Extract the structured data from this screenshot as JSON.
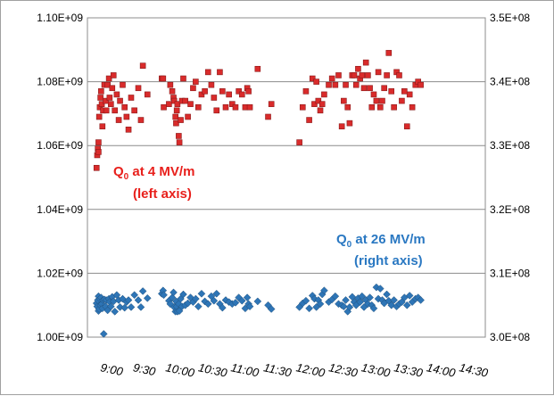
{
  "chart_data": {
    "type": "scatter",
    "x_tick_labels": [
      "9:00",
      "9:30",
      "10:00",
      "10:30",
      "11:00",
      "11:30",
      "12:00",
      "12:30",
      "13:00",
      "13:30",
      "14:00",
      "14:30"
    ],
    "x_tick_hours": [
      9.0,
      9.5,
      10.0,
      10.5,
      11.0,
      11.5,
      12.0,
      12.5,
      13.0,
      13.5,
      14.0,
      14.5
    ],
    "xlim_hours": [
      8.7,
      14.8
    ],
    "left_axis": {
      "ylim": [
        1000000000.0,
        1100000000.0
      ],
      "tick_labels": [
        "1.00E+09",
        "1.02E+09",
        "1.04E+09",
        "1.06E+09",
        "1.08E+09",
        "1.10E+09"
      ],
      "tick_values": [
        1000000000.0,
        1020000000.0,
        1040000000.0,
        1060000000.0,
        1080000000.0,
        1100000000.0
      ]
    },
    "right_axis": {
      "ylim": [
        300000000.0,
        350000000.0
      ],
      "tick_labels": [
        "3.0E+08",
        "3.1E+08",
        "3.2E+08",
        "3.3E+08",
        "3.4E+08",
        "3.5E+08"
      ],
      "tick_values": [
        300000000.0,
        310000000.0,
        320000000.0,
        330000000.0,
        340000000.0,
        350000000.0
      ]
    },
    "grid": "horizontal",
    "annotations": [
      {
        "main": "Q",
        "sub": "0",
        "rest": " at 4 MV/m",
        "line2": "(left axis)",
        "color": "#e8201c"
      },
      {
        "main": "Q",
        "sub": "0",
        "rest": " at 26 MV/m",
        "line2": "(right axis)",
        "color": "#2a78c2"
      }
    ],
    "series": [
      {
        "axis": "left",
        "marker": "square",
        "color": "#d92b2b",
        "points": [
          [
            8.84,
            1053000000.0
          ],
          [
            8.85,
            1057000000.0
          ],
          [
            8.86,
            1059000000.0
          ],
          [
            8.87,
            1061000000.0
          ],
          [
            8.87,
            1058000000.0
          ],
          [
            8.88,
            1069000000.0
          ],
          [
            8.89,
            1072000000.0
          ],
          [
            8.9,
            1075000000.0
          ],
          [
            8.91,
            1077000000.0
          ],
          [
            8.92,
            1073000000.0
          ],
          [
            8.93,
            1066000000.0
          ],
          [
            8.94,
            1071000000.0
          ],
          [
            8.96,
            1079000000.0
          ],
          [
            8.98,
            1074000000.0
          ],
          [
            8.99,
            1071000000.0
          ],
          [
            9.01,
            1079000000.0
          ],
          [
            9.03,
            1081000000.0
          ],
          [
            9.04,
            1075000000.0
          ],
          [
            9.06,
            1073000000.0
          ],
          [
            9.08,
            1078000000.0
          ],
          [
            9.1,
            1082000000.0
          ],
          [
            9.12,
            1071000000.0
          ],
          [
            9.15,
            1076000000.0
          ],
          [
            9.18,
            1068000000.0
          ],
          [
            9.2,
            1074000000.0
          ],
          [
            9.24,
            1079000000.0
          ],
          [
            9.27,
            1072000000.0
          ],
          [
            9.3,
            1069000000.0
          ],
          [
            9.33,
            1065000000.0
          ],
          [
            9.37,
            1075000000.0
          ],
          [
            9.42,
            1071000000.0
          ],
          [
            9.48,
            1078000000.0
          ],
          [
            9.52,
            1068000000.0
          ],
          [
            9.55,
            1085000000.0
          ],
          [
            9.62,
            1076000000.0
          ],
          [
            9.84,
            1081000000.0
          ],
          [
            9.86,
            1081000000.0
          ],
          [
            9.87,
            1072000000.0
          ],
          [
            9.95,
            1073000000.0
          ],
          [
            9.97,
            1079000000.0
          ],
          [
            10.0,
            1077000000.0
          ],
          [
            10.02,
            1075000000.0
          ],
          [
            10.03,
            1074000000.0
          ],
          [
            10.05,
            1069000000.0
          ],
          [
            10.06,
            1067000000.0
          ],
          [
            10.07,
            1071000000.0
          ],
          [
            10.08,
            1073000000.0
          ],
          [
            10.1,
            1063000000.0
          ],
          [
            10.11,
            1061000000.0
          ],
          [
            10.13,
            1068000000.0
          ],
          [
            10.15,
            1074000000.0
          ],
          [
            10.17,
            1081000000.0
          ],
          [
            10.2,
            1074000000.0
          ],
          [
            10.24,
            1069000000.0
          ],
          [
            10.28,
            1073000000.0
          ],
          [
            10.32,
            1078000000.0
          ],
          [
            10.36,
            1080000000.0
          ],
          [
            10.4,
            1072000000.0
          ],
          [
            10.45,
            1076000000.0
          ],
          [
            10.5,
            1077000000.0
          ],
          [
            10.55,
            1083000000.0
          ],
          [
            10.6,
            1079000000.0
          ],
          [
            10.64,
            1075000000.0
          ],
          [
            10.68,
            1071000000.0
          ],
          [
            10.73,
            1083000000.0
          ],
          [
            10.77,
            1077000000.0
          ],
          [
            10.82,
            1072000000.0
          ],
          [
            10.87,
            1076000000.0
          ],
          [
            10.92,
            1073000000.0
          ],
          [
            10.97,
            1072000000.0
          ],
          [
            11.02,
            1077000000.0
          ],
          [
            11.07,
            1076000000.0
          ],
          [
            11.12,
            1072000000.0
          ],
          [
            11.15,
            1078000000.0
          ],
          [
            11.17,
            1077000000.0
          ],
          [
            11.19,
            1072000000.0
          ],
          [
            11.31,
            1084000000.0
          ],
          [
            11.47,
            1069000000.0
          ],
          [
            11.52,
            1073000000.0
          ],
          [
            11.95,
            1061000000.0
          ],
          [
            12.0,
            1072000000.0
          ],
          [
            12.05,
            1077000000.0
          ],
          [
            12.1,
            1068000000.0
          ],
          [
            12.15,
            1081000000.0
          ],
          [
            12.18,
            1073000000.0
          ],
          [
            12.21,
            1080000000.0
          ],
          [
            12.24,
            1074000000.0
          ],
          [
            12.27,
            1071000000.0
          ],
          [
            12.3,
            1073000000.0
          ],
          [
            12.33,
            1076000000.0
          ],
          [
            12.4,
            1079000000.0
          ],
          [
            12.45,
            1081000000.0
          ],
          [
            12.5,
            1079000000.0
          ],
          [
            12.55,
            1082000000.0
          ],
          [
            12.6,
            1066000000.0
          ],
          [
            12.63,
            1074000000.0
          ],
          [
            12.66,
            1079000000.0
          ],
          [
            12.69,
            1072000000.0
          ],
          [
            12.72,
            1067000000.0
          ],
          [
            12.76,
            1082000000.0
          ],
          [
            12.79,
            1082000000.0
          ],
          [
            12.82,
            1079000000.0
          ],
          [
            12.85,
            1084000000.0
          ],
          [
            12.88,
            1081000000.0
          ],
          [
            12.91,
            1082000000.0
          ],
          [
            12.94,
            1078000000.0
          ],
          [
            12.97,
            1086000000.0
          ],
          [
            13.0,
            1082000000.0
          ],
          [
            13.03,
            1078000000.0
          ],
          [
            13.06,
            1072000000.0
          ],
          [
            13.09,
            1076000000.0
          ],
          [
            13.13,
            1074000000.0
          ],
          [
            13.16,
            1083000000.0
          ],
          [
            13.19,
            1072000000.0
          ],
          [
            13.22,
            1074000000.0
          ],
          [
            13.25,
            1078000000.0
          ],
          [
            13.29,
            1082000000.0
          ],
          [
            13.32,
            1089000000.0
          ],
          [
            13.36,
            1077000000.0
          ],
          [
            13.4,
            1072000000.0
          ],
          [
            13.44,
            1083000000.0
          ],
          [
            13.48,
            1082000000.0
          ],
          [
            13.52,
            1074000000.0
          ],
          [
            13.56,
            1077000000.0
          ],
          [
            13.6,
            1066000000.0
          ],
          [
            13.64,
            1076000000.0
          ],
          [
            13.68,
            1072000000.0
          ],
          [
            13.73,
            1079000000.0
          ],
          [
            13.77,
            1080000000.0
          ],
          [
            13.81,
            1079000000.0
          ]
        ]
      },
      {
        "axis": "right",
        "marker": "diamond",
        "color": "#2e75b6",
        "points": [
          [
            8.84,
            305300000.0
          ],
          [
            8.85,
            304800000.0
          ],
          [
            8.86,
            305800000.0
          ],
          [
            8.87,
            304100000.0
          ],
          [
            8.87,
            306400000.0
          ],
          [
            8.88,
            304400000.0
          ],
          [
            8.89,
            306000000.0
          ],
          [
            8.9,
            305000000.0
          ],
          [
            8.91,
            306200000.0
          ],
          [
            8.92,
            305200000.0
          ],
          [
            8.93,
            304500000.0
          ],
          [
            8.94,
            305800000.0
          ],
          [
            8.95,
            300500000.0
          ],
          [
            8.96,
            305900000.0
          ],
          [
            8.98,
            304800000.0
          ],
          [
            8.99,
            305800000.0
          ],
          [
            9.01,
            304200000.0
          ],
          [
            9.03,
            306000000.0
          ],
          [
            9.04,
            305500000.0
          ],
          [
            9.06,
            304800000.0
          ],
          [
            9.08,
            306300000.0
          ],
          [
            9.1,
            305600000.0
          ],
          [
            9.12,
            304000000.0
          ],
          [
            9.15,
            306600000.0
          ],
          [
            9.18,
            305800000.0
          ],
          [
            9.2,
            304700000.0
          ],
          [
            9.24,
            306000000.0
          ],
          [
            9.27,
            304600000.0
          ],
          [
            9.3,
            305500000.0
          ],
          [
            9.33,
            305800000.0
          ],
          [
            9.37,
            304700000.0
          ],
          [
            9.42,
            306600000.0
          ],
          [
            9.48,
            305800000.0
          ],
          [
            9.52,
            304700000.0
          ],
          [
            9.55,
            307200000.0
          ],
          [
            9.62,
            306100000.0
          ],
          [
            9.84,
            306800000.0
          ],
          [
            9.86,
            307300000.0
          ],
          [
            9.87,
            306600000.0
          ],
          [
            9.95,
            305700000.0
          ],
          [
            9.97,
            305200000.0
          ],
          [
            10.0,
            306200000.0
          ],
          [
            10.02,
            307000000.0
          ],
          [
            10.03,
            304700000.0
          ],
          [
            10.05,
            304000000.0
          ],
          [
            10.06,
            305600000.0
          ],
          [
            10.07,
            304800000.0
          ],
          [
            10.08,
            304000000.0
          ],
          [
            10.1,
            305200000.0
          ],
          [
            10.11,
            304100000.0
          ],
          [
            10.13,
            306000000.0
          ],
          [
            10.15,
            304800000.0
          ],
          [
            10.17,
            306700000.0
          ],
          [
            10.2,
            305000000.0
          ],
          [
            10.24,
            305300000.0
          ],
          [
            10.28,
            306200000.0
          ],
          [
            10.32,
            305500000.0
          ],
          [
            10.36,
            306000000.0
          ],
          [
            10.4,
            304800000.0
          ],
          [
            10.45,
            306800000.0
          ],
          [
            10.5,
            305600000.0
          ],
          [
            10.55,
            305200000.0
          ],
          [
            10.6,
            306400000.0
          ],
          [
            10.64,
            305700000.0
          ],
          [
            10.68,
            306800000.0
          ],
          [
            10.73,
            305200000.0
          ],
          [
            10.77,
            304600000.0
          ],
          [
            10.82,
            305800000.0
          ],
          [
            10.87,
            305500000.0
          ],
          [
            10.92,
            305200000.0
          ],
          [
            10.97,
            305400000.0
          ],
          [
            11.02,
            306200000.0
          ],
          [
            11.07,
            305700000.0
          ],
          [
            11.12,
            304500000.0
          ],
          [
            11.15,
            306200000.0
          ],
          [
            11.17,
            305200000.0
          ],
          [
            11.19,
            304800000.0
          ],
          [
            11.31,
            305600000.0
          ],
          [
            11.47,
            305000000.0
          ],
          [
            11.52,
            304400000.0
          ],
          [
            11.95,
            304700000.0
          ],
          [
            12.0,
            305300000.0
          ],
          [
            12.05,
            305700000.0
          ],
          [
            12.1,
            304500000.0
          ],
          [
            12.15,
            306500000.0
          ],
          [
            12.18,
            306000000.0
          ],
          [
            12.21,
            304700000.0
          ],
          [
            12.24,
            305800000.0
          ],
          [
            12.27,
            305200000.0
          ],
          [
            12.3,
            306700000.0
          ],
          [
            12.33,
            307300000.0
          ],
          [
            12.4,
            305500000.0
          ],
          [
            12.45,
            305900000.0
          ],
          [
            12.5,
            306400000.0
          ],
          [
            12.55,
            305200000.0
          ],
          [
            12.6,
            305000000.0
          ],
          [
            12.63,
            304800000.0
          ],
          [
            12.66,
            305800000.0
          ],
          [
            12.69,
            304000000.0
          ],
          [
            12.72,
            304700000.0
          ],
          [
            12.76,
            306300000.0
          ],
          [
            12.79,
            305500000.0
          ],
          [
            12.82,
            305000000.0
          ],
          [
            12.85,
            306100000.0
          ],
          [
            12.88,
            305500000.0
          ],
          [
            12.91,
            306400000.0
          ],
          [
            12.94,
            304700000.0
          ],
          [
            12.97,
            305800000.0
          ],
          [
            13.0,
            305200000.0
          ],
          [
            13.03,
            306200000.0
          ],
          [
            13.06,
            305000000.0
          ],
          [
            13.09,
            304500000.0
          ],
          [
            13.13,
            307800000.0
          ],
          [
            13.16,
            306000000.0
          ],
          [
            13.19,
            307600000.0
          ],
          [
            13.22,
            305800000.0
          ],
          [
            13.25,
            305300000.0
          ],
          [
            13.29,
            306700000.0
          ],
          [
            13.32,
            305700000.0
          ],
          [
            13.36,
            305000000.0
          ],
          [
            13.4,
            305800000.0
          ],
          [
            13.44,
            304800000.0
          ],
          [
            13.48,
            305200000.0
          ],
          [
            13.52,
            305500000.0
          ],
          [
            13.56,
            306200000.0
          ],
          [
            13.6,
            305000000.0
          ],
          [
            13.64,
            306500000.0
          ],
          [
            13.68,
            305500000.0
          ],
          [
            13.73,
            306000000.0
          ],
          [
            13.77,
            306200000.0
          ],
          [
            13.81,
            305800000.0
          ]
        ]
      }
    ]
  }
}
